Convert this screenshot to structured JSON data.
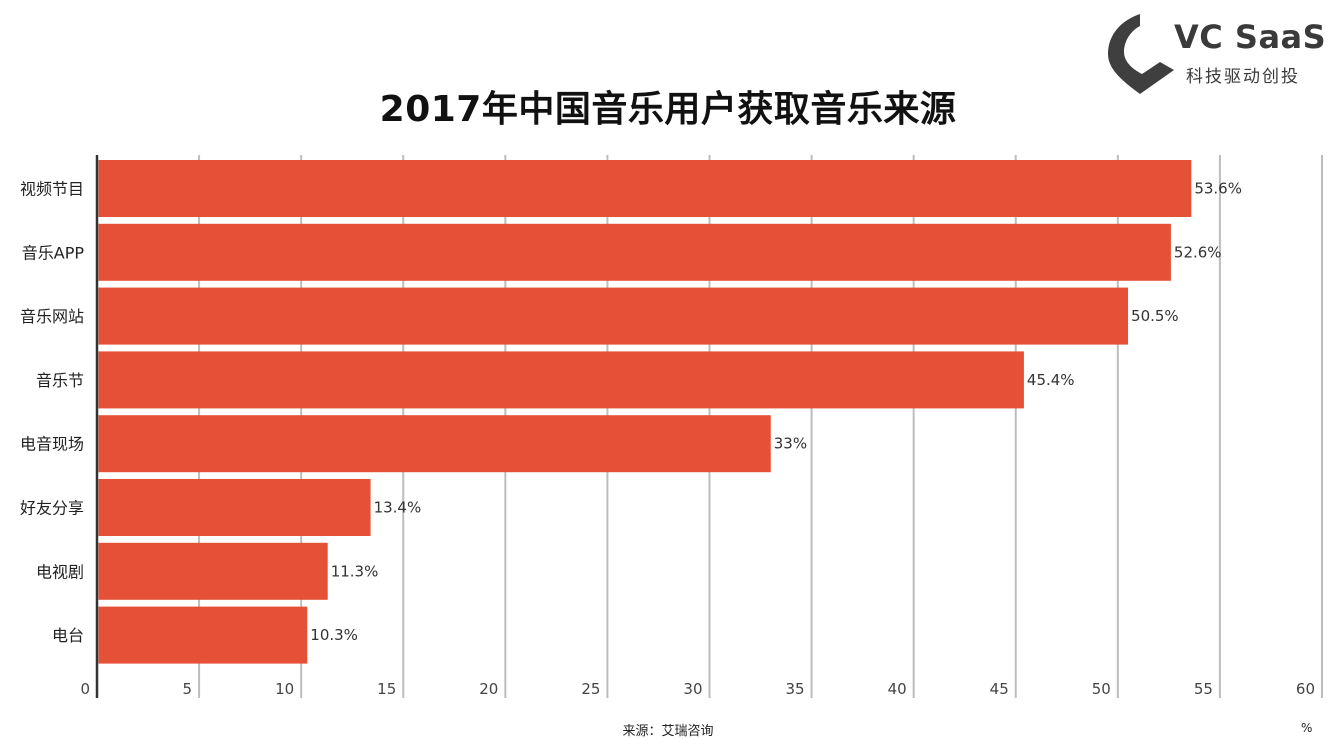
{
  "brand": {
    "name": "VC SaaS",
    "tagline": "科技驱动创投"
  },
  "chart_data": {
    "type": "bar",
    "orientation": "horizontal",
    "title": "2017年中国音乐用户获取音乐来源",
    "categories": [
      "视频节目",
      "音乐APP",
      "音乐网站",
      "音乐节",
      "电音现场",
      "好友分享",
      "电视剧",
      "电台"
    ],
    "values": [
      53.6,
      52.6,
      50.5,
      45.4,
      33,
      13.4,
      11.3,
      10.3
    ],
    "value_labels": [
      "53.6%",
      "52.6%",
      "50.5%",
      "45.4%",
      "33%",
      "13.4%",
      "11.3%",
      "10.3%"
    ],
    "xlim": [
      0,
      60
    ],
    "xticks": [
      0,
      5,
      10,
      15,
      20,
      25,
      30,
      35,
      40,
      45,
      50,
      55,
      60
    ],
    "grid": true,
    "bar_color": "#e45136",
    "unit": "%",
    "source": "来源：艾瑞咨询"
  }
}
